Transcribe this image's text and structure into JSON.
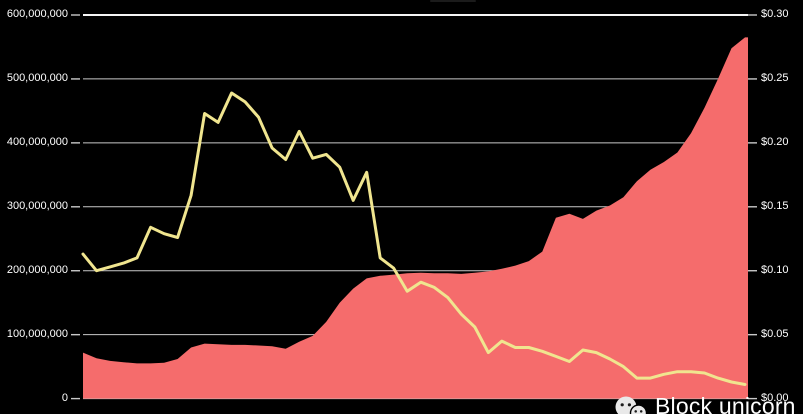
{
  "watermark": {
    "text": "Block unicorn",
    "icon": "wechat-icon"
  },
  "chart_data": {
    "type": "area+line combo",
    "title": "",
    "background": "#000000",
    "grid": {
      "color": "#c9c9c9",
      "top_line_color": "#f5f5f5",
      "tick_color": "#c9c9c9"
    },
    "left_axis": {
      "min": 0,
      "max": 600000000,
      "labels_top_to_bottom": [
        "600,000,000",
        "500,000,000",
        "400,000,000",
        "300,000,000",
        "200,000,000",
        "100,000,000",
        "0"
      ]
    },
    "right_axis": {
      "min": 0,
      "max": 0.3,
      "labels_top_to_bottom": [
        "$0.30",
        "$0.25",
        "$0.20",
        "$0.15",
        "$0.10",
        "$0.05",
        "$0.00"
      ]
    },
    "x_axis": {
      "tick_labels_visible": false
    },
    "legend": {
      "visible": false
    },
    "series": [
      {
        "name": "supply-area",
        "type": "area",
        "axis": "left",
        "color": "#f56c6c",
        "values": [
          72000000,
          63000000,
          59000000,
          57000000,
          55000000,
          55000000,
          56000000,
          62000000,
          80000000,
          86000000,
          85000000,
          84000000,
          84000000,
          83000000,
          82000000,
          78000000,
          89000000,
          98000000,
          120000000,
          150000000,
          172000000,
          188000000,
          192000000,
          194000000,
          196000000,
          197000000,
          196000000,
          196000000,
          195000000,
          197000000,
          199000000,
          203000000,
          208000000,
          215000000,
          230000000,
          283000000,
          289000000,
          281000000,
          294000000,
          302000000,
          315000000,
          340000000,
          358000000,
          370000000,
          385000000,
          415000000,
          455000000,
          500000000,
          548000000,
          565000000
        ]
      },
      {
        "name": "price-line",
        "type": "line",
        "axis": "right",
        "color": "#f0e58f",
        "stroke_width": 3,
        "values": [
          0.113,
          0.1,
          0.103,
          0.106,
          0.11,
          0.134,
          0.129,
          0.126,
          0.159,
          0.223,
          0.216,
          0.239,
          0.232,
          0.22,
          0.196,
          0.187,
          0.209,
          0.188,
          0.191,
          0.181,
          0.155,
          0.177,
          0.11,
          0.102,
          0.084,
          0.091,
          0.087,
          0.079,
          0.066,
          0.056,
          0.036,
          0.045,
          0.04,
          0.04,
          0.037,
          0.033,
          0.029,
          0.038,
          0.036,
          0.031,
          0.025,
          0.016,
          0.016,
          0.019,
          0.021,
          0.021,
          0.02,
          0.016,
          0.013,
          0.011
        ]
      }
    ]
  }
}
